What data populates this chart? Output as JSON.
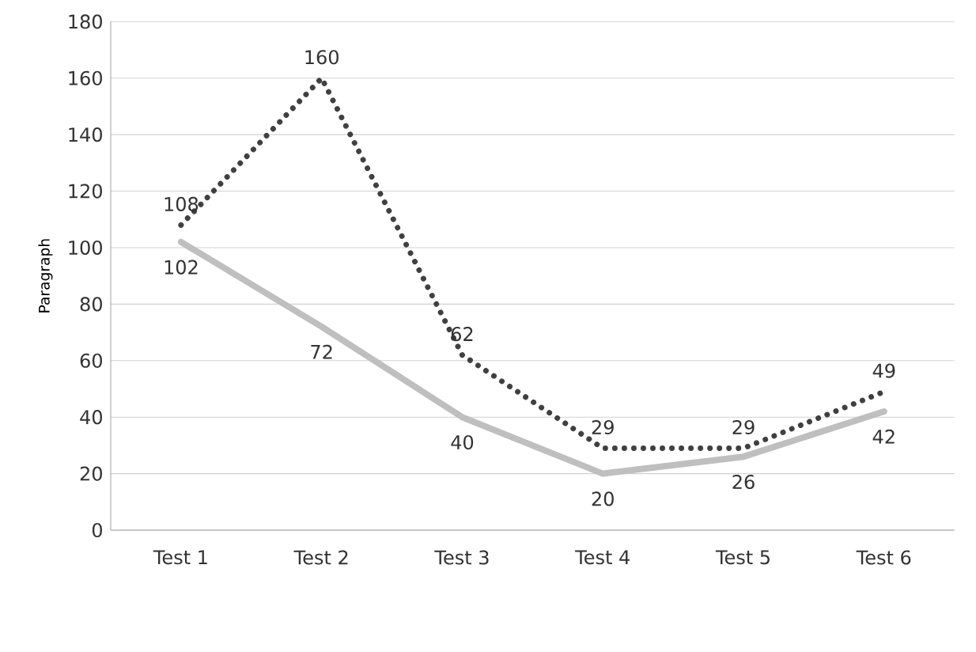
{
  "chart_data": {
    "type": "line",
    "ylabel": "Paragraph",
    "categories": [
      "Test 1",
      "Test 2",
      "Test 3",
      "Test 4",
      "Test 5",
      "Test 6"
    ],
    "series": [
      {
        "color": "#404040",
        "line_style": "dotted",
        "values": [
          108,
          160,
          62,
          29,
          29,
          49
        ]
      },
      {
        "color": "#bfbfbf",
        "line_style": "solid",
        "values": [
          102,
          72,
          40,
          20,
          26,
          42
        ]
      }
    ],
    "ylim": [
      0,
      180
    ],
    "yticks": [
      0,
      20,
      40,
      60,
      80,
      100,
      120,
      140,
      160,
      180
    ],
    "grid": "y",
    "marker": "none",
    "data_labels": true
  }
}
